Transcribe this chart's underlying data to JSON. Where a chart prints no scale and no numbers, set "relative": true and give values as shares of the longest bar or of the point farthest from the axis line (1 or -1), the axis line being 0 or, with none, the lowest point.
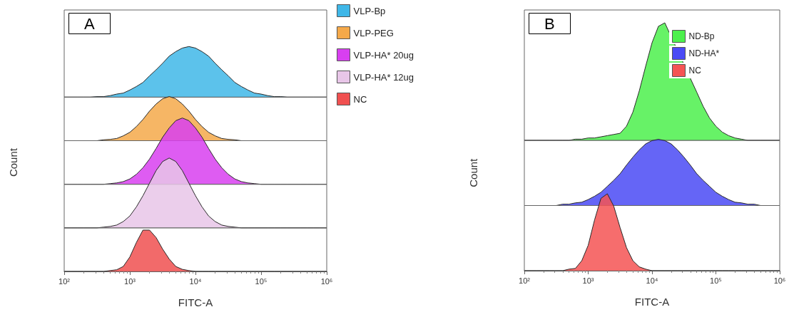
{
  "chart_data": [
    {
      "type": "area",
      "title": "A",
      "relative": true,
      "log": "x",
      "legend": "right",
      "tick_labels": false,
      "xlim": [
        100,
        1000000
      ],
      "x": [
        100,
        126,
        158,
        200,
        251,
        316,
        398,
        501,
        631,
        794,
        1000,
        1259,
        1585,
        1995,
        2512,
        3162,
        3981,
        5012,
        6310,
        7943,
        10000,
        12589,
        15849,
        19953,
        25119,
        31623,
        39811,
        50119,
        63096,
        79433,
        100000,
        125893,
        158489,
        199526,
        251189,
        316228,
        398107,
        501187,
        630957,
        794328,
        1000000
      ],
      "series": [
        {
          "name": "VLP-Bp",
          "color": "#3fb7e8",
          "values": [
            0,
            0,
            0,
            0,
            0,
            0.01,
            0.01,
            0.03,
            0.06,
            0.08,
            0.14,
            0.21,
            0.29,
            0.42,
            0.54,
            0.67,
            0.81,
            0.9,
            0.97,
            1,
            0.97,
            0.9,
            0.81,
            0.67,
            0.54,
            0.42,
            0.29,
            0.21,
            0.14,
            0.08,
            0.06,
            0.03,
            0.01,
            0.01,
            0,
            0,
            0,
            0,
            0,
            0,
            0
          ]
        }
      ]
    },
    {
      "type": "area",
      "relative": true,
      "log": "x",
      "legend": "right",
      "tick_labels": false,
      "xlim": [
        100,
        1000000
      ],
      "x": [
        100,
        126,
        158,
        200,
        251,
        316,
        398,
        501,
        631,
        794,
        1000,
        1259,
        1585,
        1995,
        2512,
        3162,
        3981,
        5012,
        6310,
        7943,
        10000,
        12589,
        15849,
        19953,
        25119,
        31623,
        39811,
        50119,
        63096,
        79433,
        100000,
        125893,
        158489,
        199526,
        251189,
        316228,
        398107,
        501187,
        630957,
        794328,
        1000000
      ],
      "series": [
        {
          "name": "VLP-PEG",
          "color": "#f5a94a",
          "values": [
            0,
            0,
            0,
            0,
            0,
            0,
            0.02,
            0.03,
            0.05,
            0.11,
            0.19,
            0.32,
            0.48,
            0.67,
            0.83,
            0.95,
            1,
            0.95,
            0.83,
            0.67,
            0.48,
            0.32,
            0.19,
            0.11,
            0.05,
            0.03,
            0.02,
            0,
            0,
            0,
            0,
            0,
            0,
            0,
            0,
            0,
            0,
            0,
            0,
            0,
            0
          ]
        }
      ]
    },
    {
      "type": "area",
      "ylabel": "Count",
      "relative": true,
      "log": "x",
      "legend": "right",
      "tick_labels": false,
      "xlim": [
        100,
        1000000
      ],
      "x": [
        100,
        126,
        158,
        200,
        251,
        316,
        398,
        501,
        631,
        794,
        1000,
        1259,
        1585,
        1995,
        2512,
        3162,
        3981,
        5012,
        6310,
        7943,
        10000,
        12589,
        15849,
        19953,
        25119,
        31623,
        39811,
        50119,
        63096,
        79433,
        100000,
        125893,
        158489,
        199526,
        251189,
        316228,
        398107,
        501187,
        630957,
        794328,
        1000000
      ],
      "series": [
        {
          "name": "VLP-HA* 20ug",
          "color": "#d83ff0",
          "values": [
            0,
            0,
            0,
            0,
            0,
            0,
            0,
            0.01,
            0.02,
            0.04,
            0.08,
            0.15,
            0.25,
            0.38,
            0.54,
            0.71,
            0.85,
            0.96,
            1,
            0.96,
            0.85,
            0.71,
            0.54,
            0.38,
            0.25,
            0.15,
            0.08,
            0.04,
            0.02,
            0.01,
            0,
            0,
            0,
            0,
            0,
            0,
            0,
            0,
            0,
            0,
            0
          ]
        }
      ]
    },
    {
      "type": "area",
      "relative": true,
      "log": "x",
      "legend": "right",
      "tick_labels": false,
      "xlim": [
        100,
        1000000
      ],
      "x": [
        100,
        126,
        158,
        200,
        251,
        316,
        398,
        501,
        631,
        794,
        1000,
        1259,
        1585,
        1995,
        2512,
        3162,
        3981,
        5012,
        6310,
        7943,
        10000,
        12589,
        15849,
        19953,
        25119,
        31623,
        39811,
        50119,
        63096,
        79433,
        100000,
        125893,
        158489,
        199526,
        251189,
        316228,
        398107,
        501187,
        630957,
        794328,
        1000000
      ],
      "series": [
        {
          "name": "VLP-HA* 12ug",
          "color": "#e8c6e8",
          "values": [
            0,
            0,
            0,
            0,
            0,
            0,
            0.01,
            0.02,
            0.04,
            0.09,
            0.17,
            0.3,
            0.46,
            0.64,
            0.82,
            0.95,
            1,
            0.95,
            0.82,
            0.64,
            0.46,
            0.3,
            0.17,
            0.09,
            0.04,
            0.02,
            0.01,
            0,
            0,
            0,
            0,
            0,
            0,
            0,
            0,
            0,
            0,
            0,
            0,
            0,
            0
          ]
        }
      ]
    },
    {
      "type": "area",
      "xlabel": "FITC-A",
      "relative": true,
      "log": "x",
      "legend": "right",
      "tick_labels": "x",
      "xlim": [
        100,
        1000000
      ],
      "xticks": [
        {
          "value": 100,
          "label": "10²"
        },
        {
          "value": 1000,
          "label": "10³"
        },
        {
          "value": 10000,
          "label": "10⁴"
        },
        {
          "value": 100000,
          "label": "10⁵"
        },
        {
          "value": 1000000,
          "label": "10⁶"
        }
      ],
      "x": [
        100,
        126,
        158,
        200,
        251,
        316,
        398,
        501,
        631,
        794,
        1000,
        1259,
        1585,
        1995,
        2512,
        3162,
        3981,
        5012,
        6310,
        7943,
        10000,
        12589,
        15849,
        19953,
        25119,
        31623,
        39811,
        50119,
        63096,
        79433,
        100000,
        125893,
        158489,
        199526,
        251189,
        316228,
        398107,
        501187,
        630957,
        794328,
        1000000
      ],
      "series": [
        {
          "name": "NC",
          "color": "#f05050",
          "values": [
            0,
            0,
            0,
            0,
            0,
            0,
            0,
            0.02,
            0.04,
            0.12,
            0.35,
            0.7,
            1,
            1,
            0.82,
            0.54,
            0.3,
            0.12,
            0.05,
            0.02,
            0,
            0,
            0,
            0,
            0,
            0,
            0,
            0,
            0,
            0,
            0,
            0,
            0,
            0,
            0,
            0,
            0,
            0,
            0,
            0,
            0
          ]
        }
      ]
    },
    {
      "type": "area",
      "title": "B",
      "relative": true,
      "log": "x",
      "legend": "top right",
      "tick_labels": false,
      "xlim": [
        100,
        1000000
      ],
      "x": [
        100,
        126,
        158,
        200,
        251,
        316,
        398,
        501,
        631,
        794,
        1000,
        1259,
        1585,
        1995,
        2512,
        3162,
        3981,
        5012,
        6310,
        7943,
        10000,
        12589,
        15849,
        19953,
        25119,
        31623,
        39811,
        50119,
        63096,
        79433,
        100000,
        125893,
        158489,
        199526,
        251189,
        316228,
        398107,
        501187,
        630957,
        794328,
        1000000
      ],
      "series": [
        {
          "name": "ND-Bp",
          "color": "#4cf04c",
          "values": [
            0,
            0,
            0,
            0,
            0,
            0,
            0,
            0,
            0.01,
            0.01,
            0.02,
            0.02,
            0.03,
            0.04,
            0.05,
            0.06,
            0.12,
            0.24,
            0.42,
            0.63,
            0.83,
            0.97,
            1,
            null,
            null,
            null,
            null,
            0.41,
            0.29,
            0.19,
            0.12,
            0.07,
            0.04,
            0.02,
            0.01,
            0,
            0,
            0,
            0,
            0,
            0
          ]
        }
      ]
    },
    {
      "type": "area",
      "ylabel": "Count",
      "relative": true,
      "log": "x",
      "legend": "top right",
      "tick_labels": false,
      "xlim": [
        100,
        1000000
      ],
      "x": [
        100,
        126,
        158,
        200,
        251,
        316,
        398,
        501,
        631,
        794,
        1000,
        1259,
        1585,
        1995,
        2512,
        3162,
        3981,
        5012,
        6310,
        7943,
        10000,
        12589,
        15849,
        19953,
        25119,
        31623,
        39811,
        50119,
        63096,
        79433,
        100000,
        125893,
        158489,
        199526,
        251189,
        316228,
        398107,
        501187,
        630957,
        794328,
        1000000
      ],
      "series": [
        {
          "name": "ND-HA*",
          "color": "#4a4af5",
          "values": [
            0,
            0,
            0,
            0,
            0,
            0,
            0.02,
            0.02,
            0.04,
            0.05,
            0.09,
            0.14,
            0.2,
            0.29,
            0.38,
            0.48,
            0.61,
            0.73,
            0.84,
            0.93,
            0.98,
            1,
            0.98,
            0.93,
            0.84,
            0.73,
            0.61,
            0.48,
            0.38,
            0.29,
            0.2,
            0.14,
            0.09,
            0.05,
            0.04,
            0.02,
            0.02,
            0,
            0,
            0,
            0
          ]
        }
      ]
    },
    {
      "type": "area",
      "xlabel": "FITC-A",
      "relative": true,
      "log": "x",
      "legend": "top right",
      "tick_labels": "x",
      "xlim": [
        100,
        1000000
      ],
      "xticks": [
        {
          "value": 100,
          "label": "10²"
        },
        {
          "value": 1000,
          "label": "10³"
        },
        {
          "value": 10000,
          "label": "10⁴"
        },
        {
          "value": 100000,
          "label": "10⁵"
        },
        {
          "value": 1000000,
          "label": "10⁶"
        }
      ],
      "x": [
        100,
        126,
        158,
        200,
        251,
        316,
        398,
        501,
        631,
        794,
        1000,
        1259,
        1585,
        1995,
        2512,
        3162,
        3981,
        5012,
        6310,
        7943,
        10000,
        12589,
        15849,
        19953,
        25119,
        31623,
        39811,
        50119,
        63096,
        79433,
        100000,
        125893,
        158489,
        199526,
        251189,
        316228,
        398107,
        501187,
        630957,
        794328,
        1000000
      ],
      "series": [
        {
          "name": "NC",
          "color": "#f55454",
          "values": [
            0,
            0,
            0,
            0,
            0,
            0,
            0,
            0.02,
            0.03,
            0.13,
            0.33,
            0.66,
            0.94,
            1,
            0.84,
            0.56,
            0.3,
            0.13,
            0.05,
            0.02,
            0,
            0,
            0,
            0,
            0,
            0,
            0,
            0,
            0,
            0,
            0,
            0,
            0,
            0,
            0,
            0,
            0,
            0,
            0,
            0,
            0
          ]
        }
      ]
    }
  ]
}
